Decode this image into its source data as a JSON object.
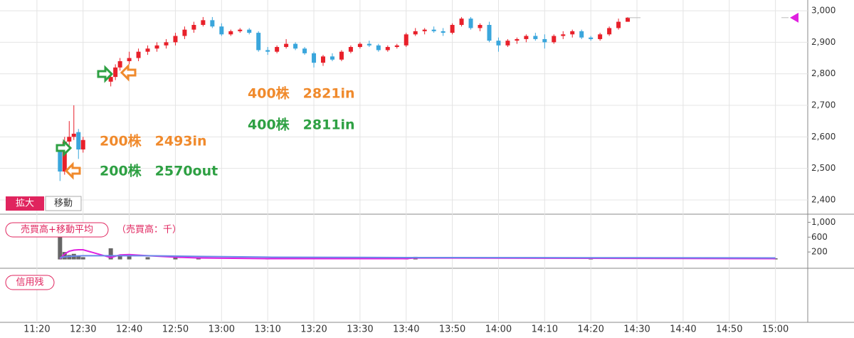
{
  "chart_data": [
    {
      "type": "candlestick",
      "x": [
        "11:25",
        "11:26",
        "11:27",
        "11:28",
        "11:29",
        "11:30",
        "12:36",
        "12:37",
        "12:38",
        "12:40",
        "12:42",
        "12:44",
        "12:46",
        "12:48",
        "12:50",
        "12:52",
        "12:54",
        "12:56",
        "12:58",
        "13:00",
        "13:02",
        "13:04",
        "13:06",
        "13:08",
        "13:10",
        "13:12",
        "13:14",
        "13:16",
        "13:18",
        "13:20",
        "13:22",
        "13:24",
        "13:26",
        "13:28",
        "13:30",
        "13:32",
        "13:34",
        "13:36",
        "13:38",
        "13:40",
        "13:42",
        "13:44",
        "13:46",
        "13:48",
        "13:50",
        "13:52",
        "13:54",
        "13:56",
        "13:58",
        "14:00",
        "14:02",
        "14:04",
        "14:06",
        "14:08",
        "14:10",
        "14:12",
        "14:14",
        "14:16",
        "14:18",
        "14:20",
        "14:22",
        "14:24",
        "14:26",
        "14:28"
      ],
      "open": [
        2565,
        2490,
        2585,
        2600,
        2615,
        2560,
        2775,
        2790,
        2820,
        2840,
        2850,
        2870,
        2880,
        2890,
        2900,
        2920,
        2940,
        2955,
        2970,
        2950,
        2925,
        2935,
        2940,
        2930,
        2875,
        2870,
        2885,
        2895,
        2880,
        2865,
        2835,
        2855,
        2845,
        2870,
        2885,
        2895,
        2890,
        2875,
        2885,
        2890,
        2925,
        2935,
        2940,
        2935,
        2930,
        2955,
        2975,
        2945,
        2955,
        2905,
        2890,
        2905,
        2910,
        2920,
        2910,
        2900,
        2920,
        2925,
        2935,
        2915,
        2910,
        2925,
        2945,
        2965
      ],
      "high": [
        2570,
        2600,
        2650,
        2700,
        2625,
        2600,
        2800,
        2830,
        2850,
        2870,
        2880,
        2890,
        2900,
        2910,
        2930,
        2950,
        2965,
        2980,
        2980,
        2960,
        2940,
        2945,
        2945,
        2935,
        2885,
        2890,
        2910,
        2900,
        2885,
        2870,
        2860,
        2865,
        2875,
        2890,
        2900,
        2905,
        2895,
        2890,
        2895,
        2930,
        2945,
        2945,
        2950,
        2945,
        2960,
        2980,
        2980,
        2960,
        2965,
        2915,
        2910,
        2915,
        2925,
        2930,
        2925,
        2925,
        2935,
        2940,
        2940,
        2920,
        2930,
        2950,
        2975,
        2980
      ],
      "low": [
        2460,
        2480,
        2570,
        2590,
        2530,
        2550,
        2760,
        2780,
        2810,
        2830,
        2840,
        2860,
        2870,
        2880,
        2890,
        2910,
        2930,
        2950,
        2945,
        2920,
        2920,
        2930,
        2925,
        2870,
        2860,
        2865,
        2880,
        2875,
        2860,
        2820,
        2825,
        2840,
        2840,
        2865,
        2880,
        2885,
        2870,
        2870,
        2880,
        2885,
        2920,
        2925,
        2930,
        2920,
        2925,
        2950,
        2940,
        2935,
        2900,
        2870,
        2885,
        2895,
        2900,
        2905,
        2880,
        2895,
        2910,
        2915,
        2910,
        2905,
        2905,
        2920,
        2940,
        2965
      ],
      "close": [
        2490,
        2585,
        2600,
        2610,
        2560,
        2590,
        2790,
        2820,
        2840,
        2850,
        2870,
        2880,
        2890,
        2900,
        2920,
        2940,
        2955,
        2970,
        2950,
        2925,
        2935,
        2940,
        2930,
        2875,
        2870,
        2885,
        2895,
        2880,
        2865,
        2835,
        2855,
        2845,
        2870,
        2885,
        2895,
        2890,
        2875,
        2885,
        2890,
        2925,
        2935,
        2940,
        2935,
        2930,
        2955,
        2975,
        2945,
        2955,
        2905,
        2890,
        2905,
        2910,
        2920,
        2910,
        2900,
        2920,
        2925,
        2935,
        2915,
        2910,
        2925,
        2945,
        2965,
        2978
      ],
      "up_color": "#e8202a",
      "down_color": "#3aa6dc",
      "xlim": [
        "11:12",
        "15:07"
      ],
      "xticks": [
        "11:20",
        "12:30",
        "12:40",
        "12:50",
        "13:00",
        "13:10",
        "13:20",
        "13:30",
        "13:40",
        "13:50",
        "14:00",
        "14:10",
        "14:20",
        "14:30",
        "14:40",
        "14:50",
        "15:00"
      ],
      "ylim": [
        2357,
        3034
      ],
      "yticks": [
        {
          "value": 3000,
          "label": "3,000"
        },
        {
          "value": 2900,
          "label": "2,900"
        },
        {
          "value": 2800,
          "label": "2,800"
        },
        {
          "value": 2700,
          "label": "2,700"
        },
        {
          "value": 2600,
          "label": "2,600"
        },
        {
          "value": 2500,
          "label": "2,500"
        },
        {
          "value": 2400,
          "label": "2,400"
        }
      ],
      "grid": true,
      "annotations": [
        {
          "text": "400株　2821in",
          "color": "#f08a2c"
        },
        {
          "text": "400株　2811in",
          "color": "#2ea043"
        },
        {
          "text": "200株　2493in",
          "color": "#f08a2c"
        },
        {
          "text": "200株　2570out",
          "color": "#2ea043"
        }
      ]
    },
    {
      "type": "bar",
      "title": "売買高+移動平均",
      "subtitle": "（売買高：千）",
      "x": [
        "11:25",
        "11:26",
        "11:27",
        "11:28",
        "11:29",
        "11:30",
        "12:36",
        "12:38",
        "12:40",
        "12:44",
        "12:50",
        "12:55",
        "13:10",
        "13:40",
        "13:42",
        "14:20",
        "15:00"
      ],
      "values": [
        600,
        200,
        120,
        150,
        80,
        60,
        300,
        100,
        80,
        60,
        70,
        50,
        20,
        30,
        70,
        50,
        30
      ],
      "color": "#666666",
      "series": [
        {
          "color": "#e020e0",
          "values": [
            20,
            150,
            220,
            250,
            260,
            260,
            50,
            120,
            130,
            100,
            60,
            40,
            20,
            20,
            40,
            30,
            20
          ]
        },
        {
          "color": "#6a88e8",
          "values": [
            50,
            70,
            80,
            90,
            95,
            100,
            100,
            100,
            100,
            100,
            90,
            80,
            60,
            50,
            50,
            45,
            40
          ]
        }
      ],
      "ylim": [
        -200,
        1180
      ],
      "yticks": [
        {
          "value": 1000,
          "label": "1,000"
        },
        600,
        200
      ]
    }
  ],
  "ui": {
    "buttons": [
      "拡大",
      "移動"
    ],
    "panels": [
      "信用残"
    ]
  }
}
